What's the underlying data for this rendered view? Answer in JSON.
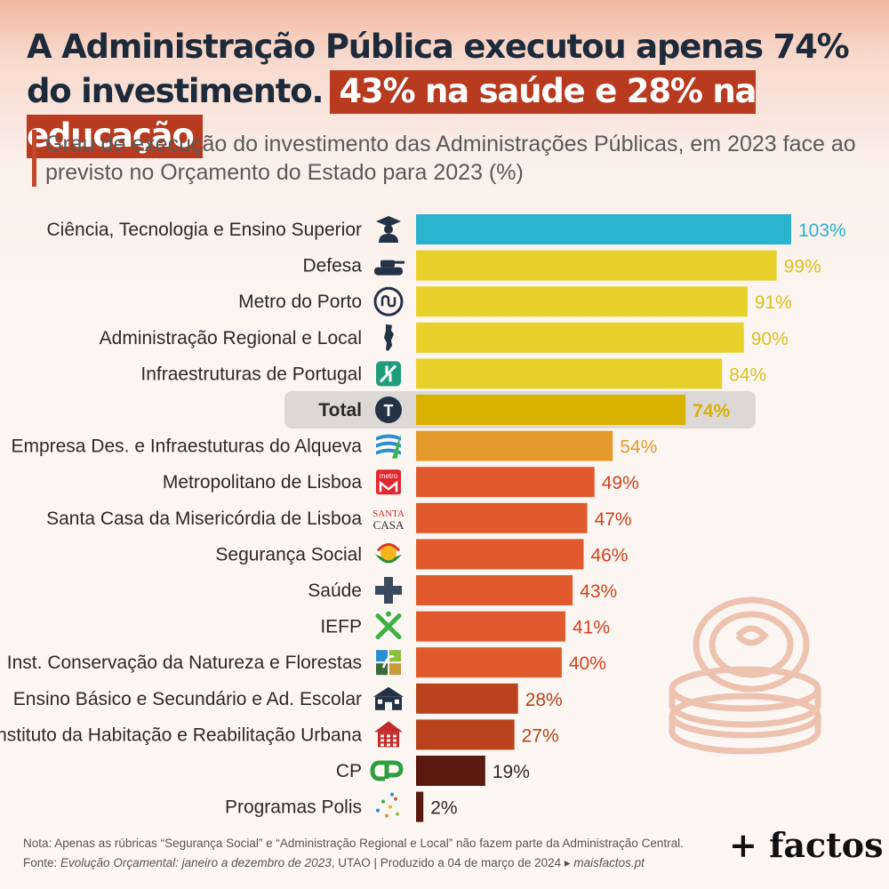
{
  "header": {
    "title_main": "A Administração Pública executou apenas 74% do investimento.",
    "title_highlight": "43% na saúde e 28% na educação",
    "subtitle": "Grau de execução do investimento das Administrações Públicas, em 2023 face ao previsto no Orçamento do Estado para 2023 (%)"
  },
  "chart_data": {
    "type": "bar",
    "orientation": "horizontal",
    "title": "Grau de execução do investimento das Administrações Públicas, em 2023 face ao previsto no Orçamento do Estado para 2023 (%)",
    "categories": [
      "Ciência, Tecnologia e Ensino Superior",
      "Defesa",
      "Metro do Porto",
      "Administração Regional e Local",
      "Infraestruturas de Portugal",
      "Total",
      "Empresa Des. e Infraestuturas do Alqueva",
      "Metropolitano de Lisboa",
      "Santa Casa da Misericórdia de Lisboa",
      "Segurança Social",
      "Saúde",
      "IEFP",
      "Inst. Conservação da Natureza e Florestas",
      "Ensino Básico e Secundário e Ad. Escolar",
      "Instituto da Habitação e Reabilitação Urbana",
      "CP",
      "Programas Polis"
    ],
    "values": [
      103,
      99,
      91,
      90,
      84,
      74,
      54,
      49,
      47,
      46,
      43,
      41,
      40,
      28,
      27,
      19,
      2
    ],
    "value_labels": [
      "103%",
      "99%",
      "91%",
      "90%",
      "84%",
      "74%",
      "54%",
      "49%",
      "47%",
      "46%",
      "43%",
      "41%",
      "40%",
      "28%",
      "27%",
      "19%",
      "2%"
    ],
    "bar_colors": [
      "#29b3cf",
      "#e8d12a",
      "#e8d12a",
      "#e8d12a",
      "#e8d12a",
      "#d9b200",
      "#e49a2a",
      "#e15a2e",
      "#e15a2e",
      "#e15a2e",
      "#e15a2e",
      "#e15a2e",
      "#e15a2e",
      "#b8431d",
      "#b8431d",
      "#5a1a12",
      "#5a1a12"
    ],
    "label_colors": [
      "#29b3cf",
      "#d9c21e",
      "#d9c21e",
      "#d9c21e",
      "#d9c21e",
      "#d9b200",
      "#e49a2a",
      "#d4421f",
      "#d4421f",
      "#d4421f",
      "#d4421f",
      "#d4421f",
      "#d4421f",
      "#b8431d",
      "#b8431d",
      "#2a2a2a",
      "#2a2a2a"
    ],
    "icons": [
      "graduate-icon",
      "tank-icon",
      "metro-porto-icon",
      "portugal-map-icon",
      "ip-logo-icon",
      "total-icon",
      "alqueva-icon",
      "metro-lisboa-icon",
      "santa-casa-icon",
      "seguranca-social-icon",
      "health-cross-icon",
      "iefp-icon",
      "icnf-icon",
      "school-icon",
      "ihru-icon",
      "cp-logo-icon",
      "polis-icon"
    ],
    "highlight_category": "Total",
    "xlim": [
      0,
      103
    ],
    "grid": false
  },
  "icons_text": {
    "metro_lisboa": "metro",
    "santa_casa_top": "SANTA",
    "santa_casa_bottom": "CASA",
    "total": "T"
  },
  "footer": {
    "note": "Nota: Apenas as rúbricas “Segurança Social” e “Administração Regional e Local” não fazem parte da Administração Central.",
    "source_prefix": "Fonte: ",
    "source_italic": "Evolução Orçamental: janeiro a dezembro de 2023",
    "source_rest": ", UTAO | Produzido a 04 de março de 2024 ▸ ",
    "source_site": "maisfactos.pt"
  },
  "brand": "+ factos",
  "colors": {
    "title": "#1d2a3a",
    "title_highlight_bg": "#b83a1f",
    "icon": "#243246",
    "total_band": "#dcd8d6"
  }
}
